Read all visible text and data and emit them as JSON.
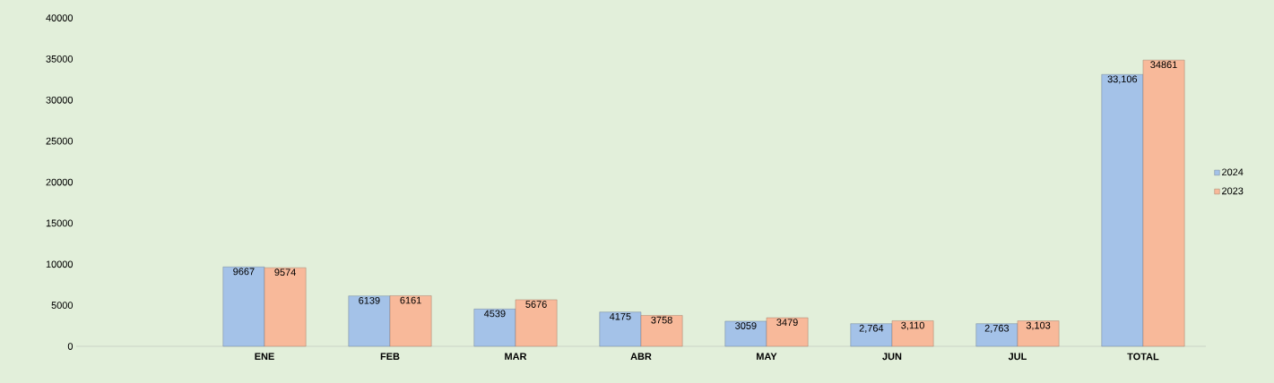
{
  "chart_data": {
    "type": "bar",
    "categories": [
      null,
      "ENE",
      "FEB",
      "MAR",
      "ABR",
      "MAY",
      "JUN",
      "JUL",
      "TOTAL"
    ],
    "series": [
      {
        "name": "2024",
        "color": "#a4c2e8",
        "values": [
          null,
          9667,
          6139,
          4539,
          4175,
          3059,
          2764,
          2763,
          33106
        ],
        "value_labels": [
          null,
          "9667",
          "6139",
          "4539",
          "4175",
          "3059",
          "2,764",
          "2,763",
          "33,106"
        ]
      },
      {
        "name": "2023",
        "color": "#f8b99a",
        "values": [
          null,
          9574,
          6161,
          5676,
          3758,
          3479,
          3110,
          3103,
          34861
        ],
        "value_labels": [
          null,
          "9574",
          "6161",
          "5676",
          "3758",
          "3479",
          "3,110",
          "3,103",
          "34861"
        ]
      }
    ],
    "ylim": [
      0,
      40000
    ],
    "yticks": [
      0,
      5000,
      10000,
      15000,
      20000,
      25000,
      30000,
      35000,
      40000
    ],
    "legend": "right",
    "grid": false
  }
}
